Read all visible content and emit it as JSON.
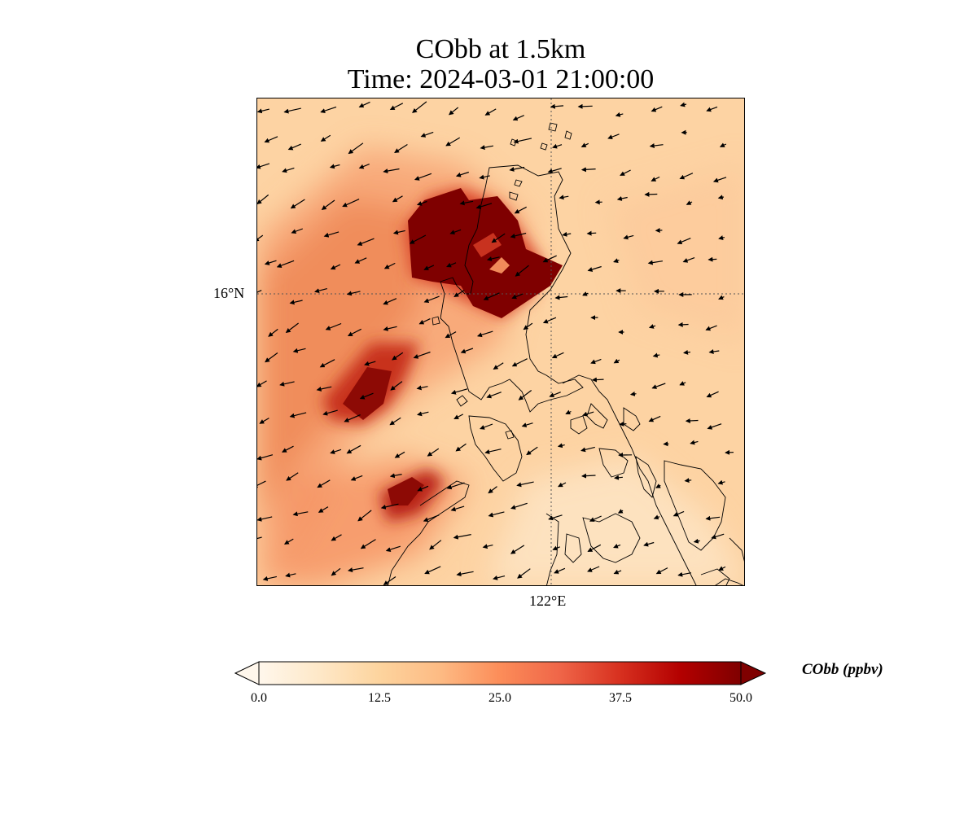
{
  "title": {
    "line1": "CObb at 1.5km",
    "line2": "Time: 2024-03-01 21:00:00"
  },
  "map": {
    "lat_label": "16°N",
    "lon_label": "122°E",
    "background_color": "#fdd7a8",
    "coastline_color": "#000000",
    "gridline_style": "dotted"
  },
  "colorbar": {
    "label": "CObb (ppbv)",
    "colormap": "OrRd",
    "extend": "both",
    "range": [
      0.0,
      50.0
    ],
    "ticks": [
      "0.0",
      "12.5",
      "25.0",
      "37.5",
      "50.0"
    ],
    "colors": [
      "#fff7ec",
      "#fee8c8",
      "#fdd49e",
      "#fdbb84",
      "#fc8d59",
      "#ef6548",
      "#d7301f",
      "#b30000",
      "#7f0000"
    ]
  }
}
